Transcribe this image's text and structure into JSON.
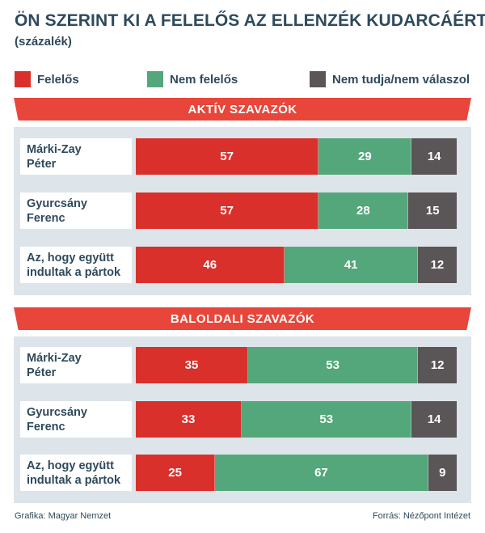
{
  "header": {
    "title": "ÖN SZERINT KI A FELELŐS AZ ELLENZÉK KUDARCÁÉRT?",
    "subtitle": "(százalék)"
  },
  "colors": {
    "responsible": "#d9302c",
    "not_responsible": "#54a77a",
    "dont_know": "#5a5557",
    "section_header": "#e8463a",
    "panel": "#dde4ea"
  },
  "legend": [
    {
      "label": "Felelős",
      "color": "#d9302c"
    },
    {
      "label": "Nem felelős",
      "color": "#54a77a"
    },
    {
      "label": "Nem tudja/nem válaszol",
      "color": "#5a5557"
    }
  ],
  "chart_data": {
    "type": "bar",
    "orientation": "horizontal",
    "stacked": true,
    "unit": "százalék",
    "series_names": [
      "Felelős",
      "Nem felelős",
      "Nem tudja/nem válaszol"
    ],
    "groups": [
      {
        "title": "AKTÍV SZAVAZÓK",
        "rows": [
          {
            "label": "Márki-Zay\nPéter",
            "values": [
              57,
              29,
              14
            ]
          },
          {
            "label": "Gyurcsány\nFerenc",
            "values": [
              57,
              28,
              15
            ]
          },
          {
            "label": "Az, hogy együtt\nindultak a pártok",
            "values": [
              46,
              41,
              12
            ]
          }
        ]
      },
      {
        "title": "BALOLDALI SZAVAZÓK",
        "rows": [
          {
            "label": "Márki-Zay\nPéter",
            "values": [
              35,
              53,
              12
            ]
          },
          {
            "label": "Gyurcsány\nFerenc",
            "values": [
              33,
              53,
              14
            ]
          },
          {
            "label": "Az, hogy együtt\nindultak a pártok",
            "values": [
              25,
              67,
              9
            ]
          }
        ]
      }
    ]
  },
  "footer": {
    "credit": "Grafika: Magyar Nemzet",
    "source": "Forrás: Nézőpont Intézet"
  }
}
